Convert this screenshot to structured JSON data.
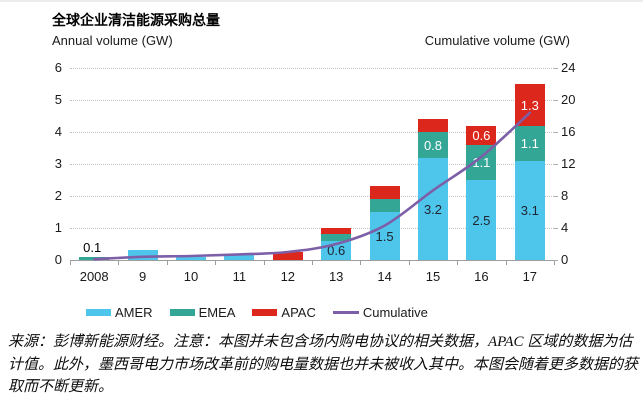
{
  "title": "全球企业清洁能源采购总量",
  "left_axis_label": "Annual volume (GW)",
  "right_axis_label": "Cumulative volume (GW)",
  "chart_data": {
    "type": "bar",
    "subtype": "stacked-bars-with-cumulative-line",
    "categories": [
      "2008",
      "9",
      "10",
      "11",
      "12",
      "13",
      "14",
      "15",
      "16",
      "17"
    ],
    "series": [
      {
        "name": "AMER",
        "color": "#4EC5EB",
        "label_color": "#1f2430",
        "values": [
          0,
          0.3,
          0.1,
          0.2,
          0,
          0.6,
          1.5,
          3.2,
          2.5,
          3.1
        ]
      },
      {
        "name": "EMEA",
        "color": "#33A695",
        "label_color": "#ffffff",
        "values": [
          0.1,
          0,
          0,
          0,
          0,
          0.2,
          0.4,
          0.8,
          1.1,
          1.1
        ]
      },
      {
        "name": "APAC",
        "color": "#DC281C",
        "label_color": "#ffffff",
        "values": [
          0,
          0,
          0,
          0,
          0.25,
          0.2,
          0.4,
          0.4,
          0.6,
          1.3
        ]
      }
    ],
    "line_series": {
      "name": "Cumulative",
      "color": "#7D5FA8",
      "axis": "right",
      "values": [
        0.1,
        0.4,
        0.5,
        0.7,
        1.0,
        2.0,
        4.3,
        8.7,
        12.9,
        18.4
      ]
    },
    "left_axis": {
      "min": 0,
      "max": 6,
      "step": 1
    },
    "right_axis": {
      "min": 0,
      "max": 24,
      "step": 4
    },
    "annotations": [
      {
        "text": "0.1",
        "category": "2008",
        "position": "above-bar"
      }
    ],
    "data_label_min": 0.55,
    "grid": "dotted-horizontal",
    "legend_position": "bottom"
  },
  "legend": {
    "items": [
      {
        "label": "AMER",
        "color": "#4EC5EB",
        "marker": "box"
      },
      {
        "label": "EMEA",
        "color": "#33A695",
        "marker": "box"
      },
      {
        "label": "APAC",
        "color": "#DC281C",
        "marker": "box"
      },
      {
        "label": "Cumulative",
        "color": "#7D5FA8",
        "marker": "line"
      }
    ]
  },
  "footer": "来源：彭博新能源财经。注意：本图并未包含场内购电协议的相关数据，APAC 区域的数据为估计值。此外，墨西哥电力市场改革前的购电量数据也并未被收入其中。本图会随着更多数据的获取而不断更新。"
}
